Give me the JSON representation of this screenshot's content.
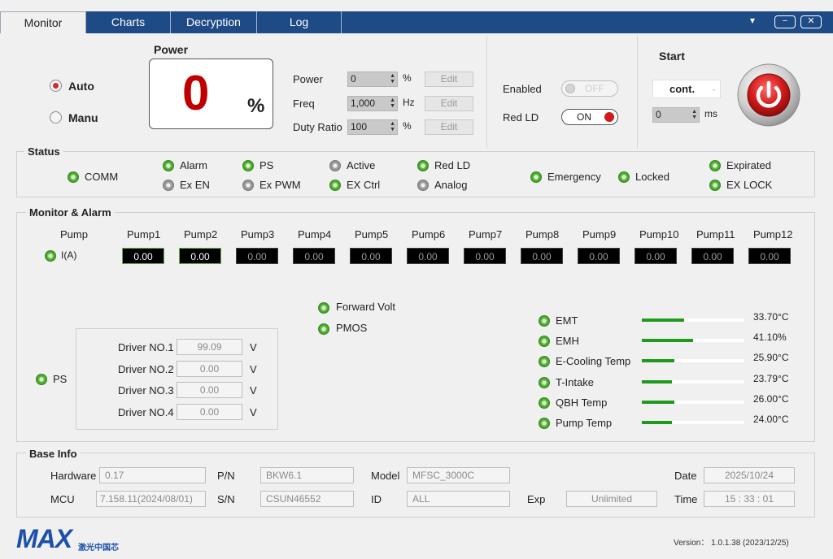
{
  "tabs": [
    "Monitor",
    "Charts",
    "Decryption",
    "Log"
  ],
  "window_controls": {
    "menu": "▾",
    "minimize": "−",
    "close": "✕"
  },
  "mode": {
    "auto_label": "Auto",
    "manu_label": "Manu",
    "selected": "Auto"
  },
  "power_display": {
    "title": "Power",
    "value": "0",
    "unit": "%"
  },
  "settings": [
    {
      "label": "Power",
      "value": "0",
      "unit": "%",
      "button": "Edit"
    },
    {
      "label": "Freq",
      "value": "1,000",
      "unit": "Hz",
      "button": "Edit"
    },
    {
      "label": "Duty Ratio",
      "value": "100",
      "unit": "%",
      "button": "Edit"
    }
  ],
  "enabled": {
    "label": "Enabled",
    "state": "OFF"
  },
  "red_ld": {
    "label": "Red LD",
    "state": "ON"
  },
  "start": {
    "title": "Start",
    "mode": "cont.",
    "ms_value": "0",
    "ms_unit": "ms"
  },
  "status": {
    "title": "Status",
    "items": [
      {
        "label": "COMM",
        "on": true
      },
      {
        "label": "Alarm",
        "on": true
      },
      {
        "label": "Ex EN",
        "on": false
      },
      {
        "label": "PS",
        "on": true
      },
      {
        "label": "Ex PWM",
        "on": false
      },
      {
        "label": "Active",
        "on": false
      },
      {
        "label": "EX Ctrl",
        "on": true
      },
      {
        "label": "Red LD",
        "on": true
      },
      {
        "label": "Analog",
        "on": false
      },
      {
        "label": "Emergency",
        "on": true
      },
      {
        "label": "Locked",
        "on": true
      },
      {
        "label": "Expirated",
        "on": true
      },
      {
        "label": "EX LOCK",
        "on": true
      }
    ]
  },
  "monitor": {
    "title": "Monitor & Alarm",
    "pump_header": "Pump",
    "current_label": "I(A)",
    "pumps": [
      {
        "name": "Pump1",
        "value": "0.00"
      },
      {
        "name": "Pump2",
        "value": "0.00"
      },
      {
        "name": "Pump3",
        "value": "0.00"
      },
      {
        "name": "Pump4",
        "value": "0.00"
      },
      {
        "name": "Pump5",
        "value": "0.00"
      },
      {
        "name": "Pump6",
        "value": "0.00"
      },
      {
        "name": "Pump7",
        "value": "0.00"
      },
      {
        "name": "Pump8",
        "value": "0.00"
      },
      {
        "name": "Pump9",
        "value": "0.00"
      },
      {
        "name": "Pump10",
        "value": "0.00"
      },
      {
        "name": "Pump11",
        "value": "0.00"
      },
      {
        "name": "Pump12",
        "value": "0.00"
      }
    ],
    "forward_volt": "Forward Volt",
    "pmos": "PMOS",
    "ps_label": "PS",
    "drivers": [
      {
        "label": "Driver NO.1",
        "value": "99.09",
        "unit": "V"
      },
      {
        "label": "Driver NO.2",
        "value": "0.00",
        "unit": "V"
      },
      {
        "label": "Driver NO.3",
        "value": "0.00",
        "unit": "V"
      },
      {
        "label": "Driver NO.4",
        "value": "0.00",
        "unit": "V"
      }
    ],
    "sensors": [
      {
        "label": "EMT",
        "value": "33.70°C",
        "level": 0.41
      },
      {
        "label": "EMH",
        "value": "41.10%",
        "level": 0.5
      },
      {
        "label": "E-Cooling Temp",
        "value": "25.90°C",
        "level": 0.32
      },
      {
        "label": "T-Intake",
        "value": "23.79°C",
        "level": 0.29
      },
      {
        "label": "QBH Temp",
        "value": "26.00°C",
        "level": 0.32
      },
      {
        "label": "Pump Temp",
        "value": "24.00°C",
        "level": 0.29
      }
    ]
  },
  "base_info": {
    "title": "Base Info",
    "hardware_label": "Hardware",
    "hardware": "0.17",
    "pn_label": "P/N",
    "pn": "BKW6.1",
    "model_label": "Model",
    "model": "MFSC_3000C",
    "date_label": "Date",
    "date": "2025/10/24",
    "mcu_label": "MCU",
    "mcu": "7.158.11(2024/08/01)",
    "sn_label": "S/N",
    "sn": "CSUN46552",
    "id_label": "ID",
    "id": "ALL",
    "exp_label": "Exp",
    "exp": "Unlimited",
    "time_label": "Time",
    "time": "15 : 33 : 01"
  },
  "footer": {
    "logo": "MAX",
    "logo_sub": "激光中国芯",
    "version": "Version：  1.0.1.38  (2023/12/25)"
  },
  "colors": {
    "tab_bar": "#1e4a86",
    "led_green": "#3b9a24",
    "power_red": "#c00000",
    "bar_green": "#1f9a1f",
    "logo_blue": "#1d50a8"
  }
}
